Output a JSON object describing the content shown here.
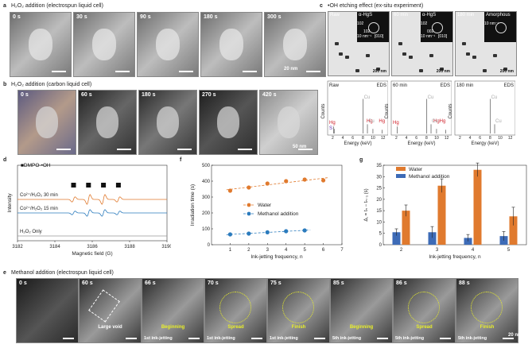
{
  "panel_a": {
    "letter": "a",
    "title": "H₂O₂ addition (electrospun liquid cell)",
    "frames": [
      "0 s",
      "30 s",
      "90 s",
      "180 s",
      "300 s"
    ],
    "scale": "20 nm"
  },
  "panel_b": {
    "letter": "b",
    "title": "H₂O₂ addition (carbon liquid cell)",
    "frames": [
      "0 s",
      "60 s",
      "180 s",
      "270 s",
      "420 s"
    ],
    "scale": "50 nm"
  },
  "panel_c": {
    "letter": "c",
    "title": "•OH etching effect (ex-situ experiment)",
    "tem": [
      {
        "time": "Raw",
        "phase": "α-HgS",
        "fft": [
          "102",
          "102",
          "10 nm⁻¹",
          "[010]"
        ],
        "scale": "200 nm"
      },
      {
        "time": "60 min",
        "phase": "α-HgS",
        "fft": [
          "102",
          "002",
          "10 nm⁻¹",
          "[010]"
        ],
        "scale": "200 nm"
      },
      {
        "time": "180 min",
        "phase": "Amorphous",
        "fft": [
          "10 nm⁻¹"
        ],
        "scale": "200 nm"
      }
    ],
    "eds": [
      {
        "title": "Raw",
        "tag": "EDS",
        "peaks": [
          "Hg",
          "S",
          "Cu",
          "Hg",
          "Hg",
          "Cu"
        ]
      },
      {
        "title": "60 min",
        "tag": "EDS",
        "peaks": [
          "Hg",
          "Cu",
          "HgHg",
          "Cu"
        ]
      },
      {
        "title": "180 min",
        "tag": "EDS",
        "peaks": [
          "Cu",
          "Cu"
        ]
      }
    ],
    "eds_ylabel": "Counts",
    "eds_xlabel": "Energy (keV)",
    "eds_ticks": [
      "2",
      "4",
      "6",
      "8",
      "10",
      "12"
    ]
  },
  "chart_data": [
    {
      "id": "d",
      "type": "line",
      "title": "",
      "xlabel": "Magnetic field (G)",
      "ylabel": "Intensity",
      "xlim": [
        3182,
        3190
      ],
      "xticks": [
        "3182",
        "3184",
        "3186",
        "3188",
        "3190"
      ],
      "legend": "■DMPO-•OH",
      "series": [
        {
          "name": "Co²⁺/H₂O₂ 30 min",
          "color": "#e07a2e"
        },
        {
          "name": "Co²⁺/H₂O₂ 15 min",
          "color": "#2b7bbd"
        },
        {
          "name": "H₂O₂ Only",
          "color": "#999999"
        }
      ],
      "markers_at": [
        3185.0,
        3185.8,
        3186.6,
        3187.4
      ]
    },
    {
      "id": "f",
      "type": "scatter",
      "title": "",
      "xlabel": "Ink-jetting frequency, n",
      "ylabel": "Irradiation time (s)",
      "xlim": [
        0,
        7
      ],
      "ylim": [
        0,
        500
      ],
      "xticks": [
        "1",
        "2",
        "3",
        "4",
        "5",
        "6",
        "7"
      ],
      "yticks": [
        "0",
        "100",
        "200",
        "300",
        "400",
        "500"
      ],
      "series": [
        {
          "name": "Water",
          "color": "#e07a2e",
          "x": [
            1,
            2,
            3,
            4,
            5,
            6
          ],
          "y": [
            340,
            360,
            385,
            400,
            410,
            405
          ]
        },
        {
          "name": "Methanol addition",
          "color": "#2b7bbd",
          "x": [
            1,
            2,
            3,
            4,
            5
          ],
          "y": [
            65,
            70,
            78,
            85,
            90
          ]
        }
      ]
    },
    {
      "id": "g",
      "type": "bar",
      "title": "",
      "xlabel": "Ink-jetting frequency, n",
      "ylabel": "Δ, = tₙ − tₙ₋₁ (s)",
      "ylim": [
        0,
        35
      ],
      "categories": [
        "2",
        "3",
        "4",
        "5"
      ],
      "yticks": [
        "0",
        "5",
        "10",
        "15",
        "20",
        "25",
        "30",
        "35"
      ],
      "series": [
        {
          "name": "Water",
          "color": "#e07a2e",
          "values": [
            15,
            26,
            33,
            12.5
          ],
          "err": [
            2.5,
            3,
            3,
            4
          ]
        },
        {
          "name": "Methanol addition",
          "color": "#3d6bb7",
          "values": [
            5.5,
            5.5,
            3,
            3.8
          ],
          "err": [
            1.5,
            2.5,
            1.5,
            2
          ]
        }
      ]
    }
  ],
  "panel_d": {
    "letter": "d"
  },
  "panel_f": {
    "letter": "f"
  },
  "panel_g": {
    "letter": "g"
  },
  "panel_e": {
    "letter": "e",
    "title": "Methanol addition (electrospun liquid cell)",
    "frames": [
      "0 s",
      "60 s",
      "66 s",
      "70 s",
      "75 s",
      "85 s",
      "86 s",
      "88 s"
    ],
    "captions": [
      "",
      "Large void",
      "Beginning",
      "Spread",
      "Finish",
      "Beginning",
      "Spread",
      "Finish"
    ],
    "bottom": [
      "",
      "",
      "1st ink-jetting",
      "1st ink-jetting",
      "1st ink-jetting",
      "5th ink-jetting",
      "5th ink-jetting",
      "5th ink-jetting"
    ],
    "scale": "20 nm"
  }
}
